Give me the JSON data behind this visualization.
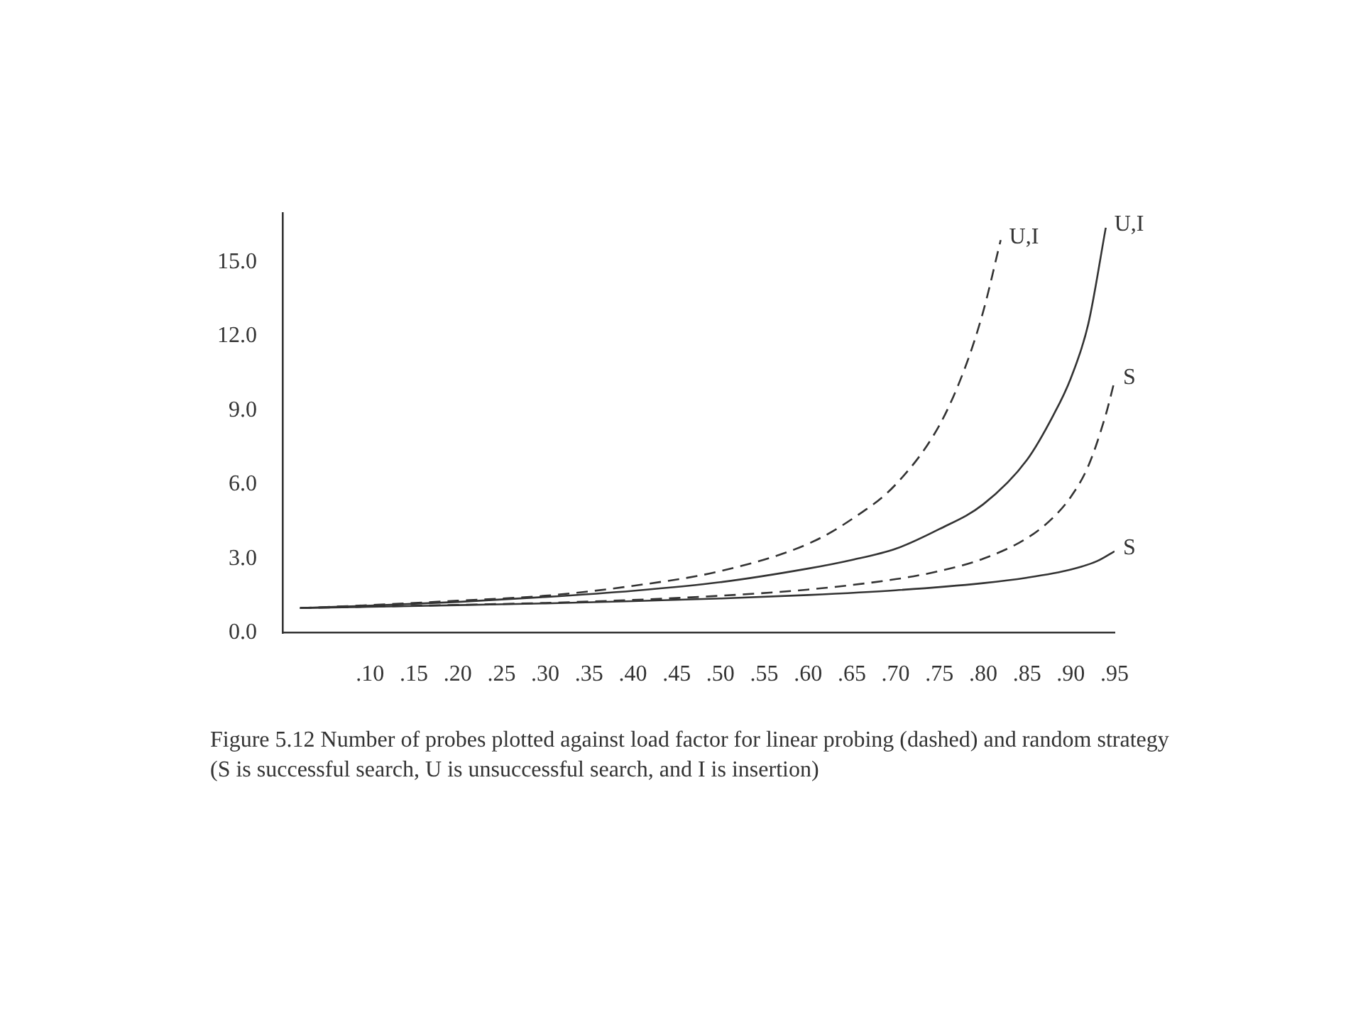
{
  "chart_data": {
    "type": "line",
    "grid": false,
    "legend": false,
    "marker": "none",
    "xlim": [
      0,
      0.95
    ],
    "ylim": [
      0,
      17
    ],
    "xticks": [
      {
        "value": 0.1,
        "label": ".10"
      },
      {
        "value": 0.15,
        "label": ".15"
      },
      {
        "value": 0.2,
        "label": ".20"
      },
      {
        "value": 0.25,
        "label": ".25"
      },
      {
        "value": 0.3,
        "label": ".30"
      },
      {
        "value": 0.35,
        "label": ".35"
      },
      {
        "value": 0.4,
        "label": ".40"
      },
      {
        "value": 0.45,
        "label": ".45"
      },
      {
        "value": 0.5,
        "label": ".50"
      },
      {
        "value": 0.55,
        "label": ".55"
      },
      {
        "value": 0.6,
        "label": ".60"
      },
      {
        "value": 0.65,
        "label": ".65"
      },
      {
        "value": 0.7,
        "label": ".70"
      },
      {
        "value": 0.75,
        "label": ".75"
      },
      {
        "value": 0.8,
        "label": ".80"
      },
      {
        "value": 0.85,
        "label": ".85"
      },
      {
        "value": 0.9,
        "label": ".90"
      },
      {
        "value": 0.95,
        "label": ".95"
      }
    ],
    "yticks": [
      {
        "value": 0,
        "label": "0.0"
      },
      {
        "value": 3,
        "label": "3.0"
      },
      {
        "value": 6,
        "label": "6.0"
      },
      {
        "value": 9,
        "label": "9.0"
      },
      {
        "value": 12,
        "label": "12.0"
      },
      {
        "value": 15,
        "label": "15.0"
      }
    ],
    "series": [
      {
        "color": "#333333",
        "line_style": "dashed",
        "x": [
          0.02,
          0.1,
          0.2,
          0.3,
          0.4,
          0.5,
          0.6,
          0.65,
          0.7,
          0.75,
          0.78,
          0.8,
          0.82
        ],
        "values": [
          1.0,
          1.12,
          1.3,
          1.5,
          1.9,
          2.5,
          3.6,
          4.6,
          6.0,
          8.4,
          10.8,
          13.0,
          15.9
        ]
      },
      {
        "color": "#333333",
        "line_style": "solid",
        "x": [
          0.02,
          0.1,
          0.2,
          0.3,
          0.4,
          0.5,
          0.6,
          0.65,
          0.7,
          0.75,
          0.8,
          0.85,
          0.88,
          0.9,
          0.92,
          0.94
        ],
        "values": [
          1.0,
          1.1,
          1.25,
          1.45,
          1.7,
          2.05,
          2.6,
          2.95,
          3.4,
          4.2,
          5.2,
          7.0,
          8.8,
          10.3,
          12.5,
          16.4
        ]
      },
      {
        "color": "#333333",
        "line_style": "dashed",
        "x": [
          0.02,
          0.1,
          0.2,
          0.3,
          0.4,
          0.5,
          0.6,
          0.7,
          0.75,
          0.8,
          0.85,
          0.88,
          0.9,
          0.92,
          0.94,
          0.95
        ],
        "values": [
          1.0,
          1.06,
          1.13,
          1.21,
          1.33,
          1.5,
          1.75,
          2.17,
          2.5,
          3.0,
          3.83,
          4.67,
          5.5,
          6.75,
          8.83,
          10.2
        ]
      },
      {
        "color": "#333333",
        "line_style": "solid",
        "x": [
          0.02,
          0.1,
          0.2,
          0.3,
          0.4,
          0.5,
          0.6,
          0.7,
          0.8,
          0.85,
          0.9,
          0.93,
          0.95
        ],
        "values": [
          1.0,
          1.05,
          1.12,
          1.19,
          1.28,
          1.39,
          1.53,
          1.72,
          2.01,
          2.23,
          2.56,
          2.9,
          3.3
        ]
      }
    ],
    "annotations": [
      {
        "text": "U,I",
        "x": 0.82,
        "y": 15.9
      },
      {
        "text": "U,I",
        "x": 0.94,
        "y": 16.4
      },
      {
        "text": "S",
        "x": 0.95,
        "y": 10.2
      },
      {
        "text": "S",
        "x": 0.95,
        "y": 3.3
      },
      "Figure 5.12 Number of probes plotted against load factor for linear probing (dashed) and random strategy (S is successful search, U is unsuccessful search, and I is insertion)"
    ]
  }
}
